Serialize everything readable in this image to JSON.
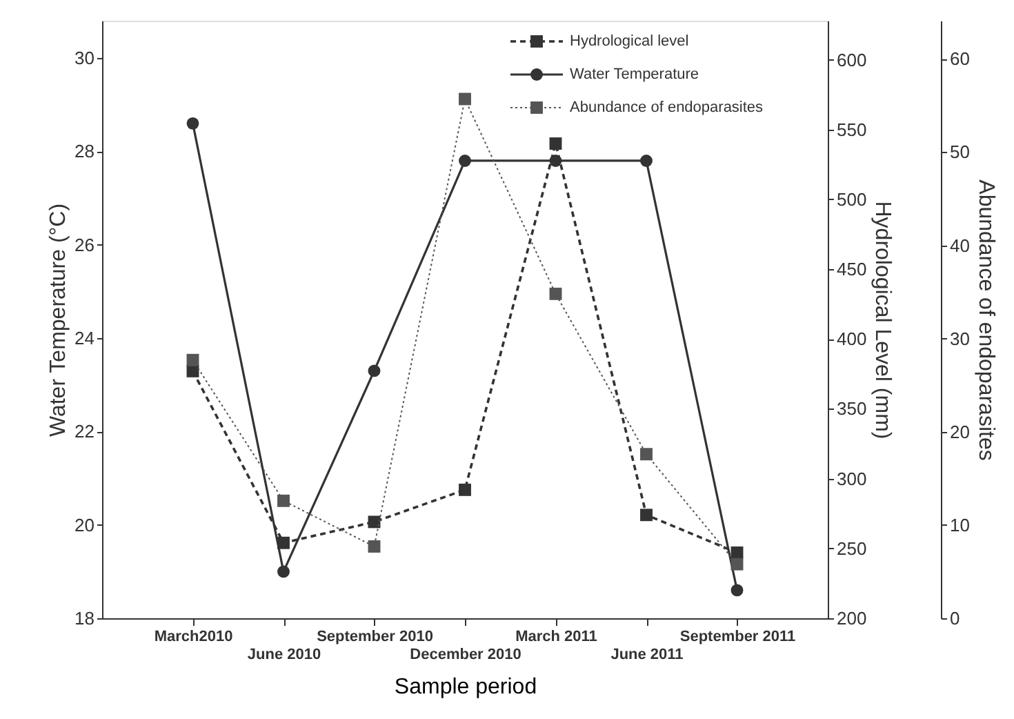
{
  "chart_data": {
    "type": "line",
    "xlabel": "Sample period",
    "ylabel": "Water Temperature (°C)",
    "y2label": "Hydrological Level (mm)",
    "y3label": "Abundance of endoparasites",
    "categories": [
      "March2010",
      "June 2010",
      "September 2010",
      "December 2010",
      "March 2011",
      "June 2011",
      "September 2011"
    ],
    "series": [
      {
        "name": "Hydrological level",
        "color": "#333333",
        "axis": "y2",
        "line_style": "dashed",
        "marker": "square",
        "values": [
          377,
          254,
          269,
          292,
          540,
          274,
          247
        ]
      },
      {
        "name": "Water Temperature",
        "color": "#333333",
        "axis": "y",
        "line_style": "solid",
        "marker": "circle",
        "values": [
          28.6,
          19.0,
          23.3,
          27.8,
          27.8,
          27.8,
          18.6
        ]
      },
      {
        "name": "Abundance of endoparasites",
        "color": "#555555",
        "axis": "y3",
        "line_style": "dotted",
        "marker": "square",
        "values": [
          27.7,
          12.6,
          7.7,
          55.7,
          34.8,
          17.6,
          5.8
        ]
      }
    ],
    "ylim": [
      18,
      30.8
    ],
    "yticks": [
      18,
      20,
      22,
      24,
      26,
      28,
      30
    ],
    "y2lim": [
      200,
      628
    ],
    "y2ticks": [
      200,
      250,
      300,
      350,
      400,
      450,
      500,
      550,
      600
    ],
    "y3lim": [
      0,
      64.1
    ],
    "y3ticks": [
      0,
      10,
      20,
      30,
      40,
      50,
      60
    ],
    "legend": "top right",
    "grid": false
  }
}
